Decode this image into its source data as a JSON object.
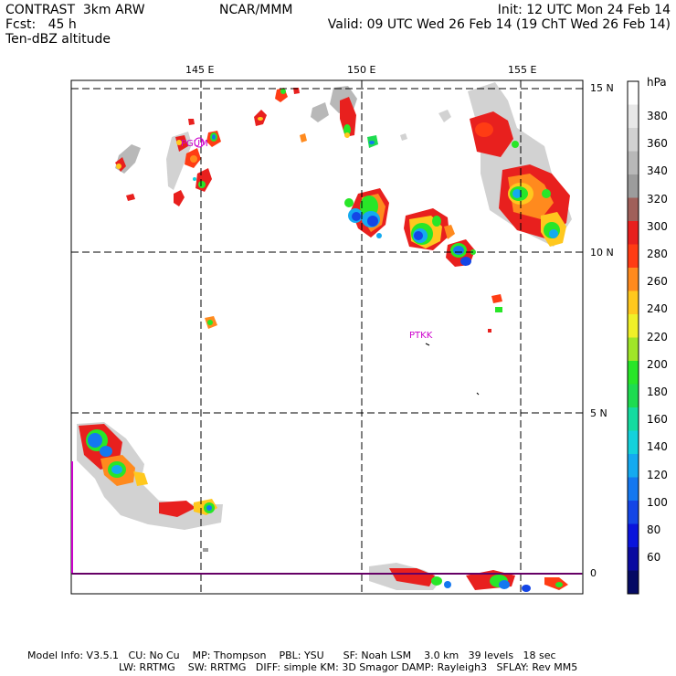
{
  "header": {
    "model": "CONTRAST  3km ARW",
    "forecast": "Fcst:   45 h",
    "field": "Ten-dBZ altitude",
    "center": "NCAR/MMM",
    "init": "Init: 12 UTC Mon 24 Feb 14",
    "valid": "Valid: 09 UTC Wed 26 Feb 14 (19 ChT Wed 26 Feb 14)"
  },
  "map": {
    "lon_labels": [
      "145 E",
      "150 E",
      "155 E"
    ],
    "lat_labels": [
      "15 N",
      "10 N",
      "5 N",
      "0"
    ],
    "stations": [
      "PGUM",
      "PTKK"
    ],
    "grid_style": "dashed",
    "boundary_color": "#cc00cc"
  },
  "colorbar": {
    "unit": "hPa",
    "labels": [
      "380",
      "360",
      "340",
      "320",
      "300",
      "280",
      "260",
      "240",
      "220",
      "200",
      "180",
      "160",
      "140",
      "120",
      "100",
      "80",
      "60"
    ],
    "colors": [
      "#ffffff",
      "#e8e8e8",
      "#d2d2d2",
      "#b8b8b8",
      "#9c9c9c",
      "#a0605a",
      "#e8201e",
      "#ff3c14",
      "#ff8a1e",
      "#ffc81e",
      "#f0f028",
      "#a0e628",
      "#28e628",
      "#1edc50",
      "#14dca0",
      "#14d2dc",
      "#14aaf0",
      "#1478f0",
      "#1446e6",
      "#0a14dc",
      "#0a0aa0",
      "#050a64"
    ]
  },
  "footer": {
    "line1": "Model Info: V3.5.1   CU: No Cu    MP: Thompson    PBL: YSU      SF: Noah LSM    3.0 km   39 levels   18 sec",
    "line2": "LW: RRTMG    SW: RRTMG   DIFF: simple KM: 3D Smagor DAMP: Rayleigh3   SFLAY: Rev MM5"
  }
}
